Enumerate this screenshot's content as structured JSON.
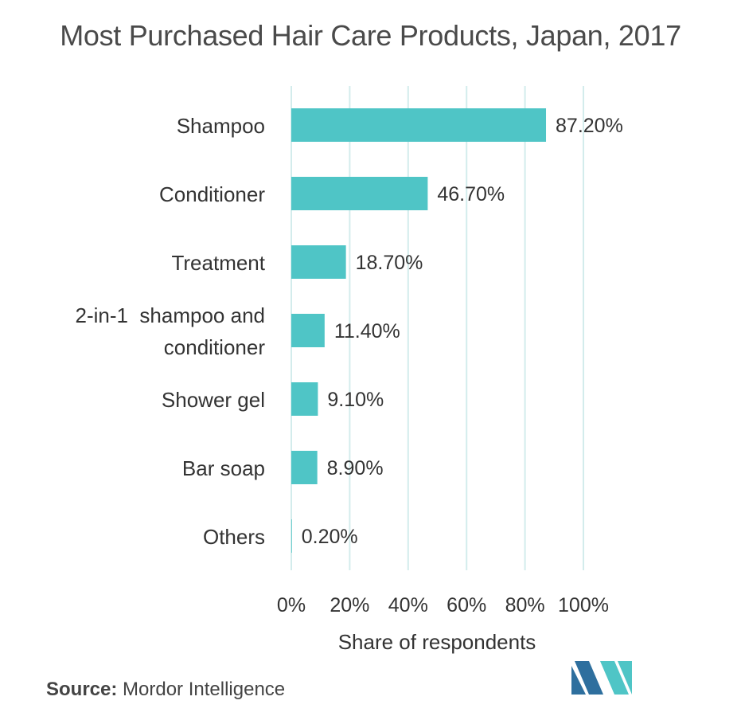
{
  "title": "Most Purchased Hair Care Products, Japan, 2017",
  "source": {
    "label": "Source:",
    "text": "Mordor Intelligence"
  },
  "colors": {
    "bar": "#4fc5c6",
    "grid": "#d3ecec",
    "text": "#333333",
    "logo_dark": "#2e6f9e",
    "logo_teal": "#4fc5c6"
  },
  "logo": {
    "icon": "mordor-intelligence-logo-icon"
  },
  "chart_data": {
    "type": "bar",
    "orientation": "horizontal",
    "title": "Most Purchased Hair Care Products, Japan, 2017",
    "xlabel": "Share of respondents",
    "ylabel": "",
    "xlim": [
      0,
      100
    ],
    "xticks": [
      0,
      20,
      40,
      60,
      80,
      100
    ],
    "xtick_labels": [
      "0%",
      "20%",
      "40%",
      "60%",
      "80%",
      "100%"
    ],
    "grid": true,
    "categories": [
      [
        "Shampoo"
      ],
      [
        "Conditioner"
      ],
      [
        "Treatment"
      ],
      [
        "2-in-1  shampoo and",
        "conditioner"
      ],
      [
        "Shower gel"
      ],
      [
        "Bar soap"
      ],
      [
        "Others"
      ]
    ],
    "values": [
      87.2,
      46.7,
      18.7,
      11.4,
      9.1,
      8.9,
      0.2
    ],
    "data_labels": [
      "87.20%",
      "46.70%",
      "18.70%",
      "11.40%",
      "9.10%",
      "8.90%",
      "0.20%"
    ]
  }
}
